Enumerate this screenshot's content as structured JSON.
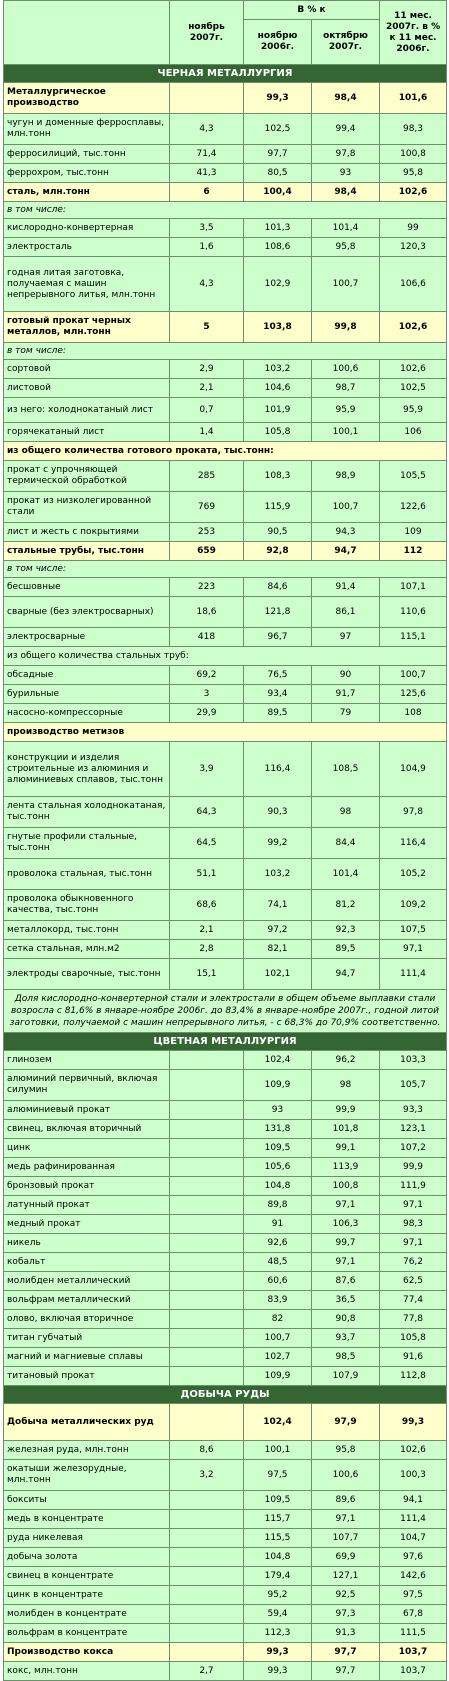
{
  "header": {
    "col_nov": "ноябрь 2007г.",
    "col_pct": "В % к",
    "col_vs_nov": "ноябрю 2006г.",
    "col_vs_oct": "октябрю 2007г.",
    "col_11m": "11 мес. 2007г. в % к 11 мес. 2006г."
  },
  "sections": [
    {
      "title": "ЧЕРНАЯ МЕТАЛЛУРГИЯ",
      "rows": [
        {
          "k": "bold",
          "h": 30,
          "label": "Металлургическое производство",
          "v": [
            "",
            "99,3",
            "98,4",
            "101,6"
          ]
        },
        {
          "k": "row",
          "h": 30,
          "label": "чугун и доменные ферросплавы, млн.тонн",
          "v": [
            "4,3",
            "102,5",
            "99,4",
            "98,3"
          ]
        },
        {
          "k": "row",
          "h": 18,
          "label": "ферросилиций, тыс.тонн",
          "v": [
            "71,4",
            "97,7",
            "97,8",
            "100,8"
          ]
        },
        {
          "k": "row",
          "h": 18,
          "label": "феррохром, тыс.тонн",
          "v": [
            "41,3",
            "80,5",
            "93",
            "95,8"
          ]
        },
        {
          "k": "bold",
          "h": 18,
          "label": "сталь, млн.тонн",
          "v": [
            "6",
            "100,4",
            "98,4",
            "102,6"
          ]
        },
        {
          "k": "sub",
          "h": 16,
          "label": "в том числе:",
          "v": null
        },
        {
          "k": "row",
          "h": 18,
          "label": "кислородно-конвертерная",
          "v": [
            "3,5",
            "101,3",
            "101,4",
            "99"
          ]
        },
        {
          "k": "row",
          "h": 18,
          "label": "электросталь",
          "v": [
            "1,6",
            "108,6",
            "95,8",
            "120,3"
          ]
        },
        {
          "k": "row",
          "h": 54,
          "label": "годная литая заготовка, получаемая с машин непрерывного литья, млн.тонн",
          "v": [
            "4,3",
            "102,9",
            "100,7",
            "106,6"
          ]
        },
        {
          "k": "bold",
          "h": 30,
          "label": "готовый прокат черных металлов, млн.тонн",
          "v": [
            "5",
            "103,8",
            "99,8",
            "102,6"
          ]
        },
        {
          "k": "sub",
          "h": 16,
          "label": "в том числе:",
          "v": null
        },
        {
          "k": "row",
          "h": 18,
          "label": "сортовой",
          "v": [
            "2,9",
            "103,2",
            "100,6",
            "102,6"
          ]
        },
        {
          "k": "row",
          "h": 18,
          "label": "листовой",
          "v": [
            "2,1",
            "104,6",
            "98,7",
            "102,5"
          ]
        },
        {
          "k": "row",
          "h": 24,
          "label": "из него: холоднокатаный лист",
          "v": [
            "0,7",
            "101,9",
            "95,9",
            "95,9"
          ]
        },
        {
          "k": "row",
          "h": 18,
          "label": "горячекатаный лист",
          "v": [
            "1,4",
            "105,8",
            "100,1",
            "106"
          ]
        },
        {
          "k": "bold",
          "h": 18,
          "label": "из общего количества готового проката, тыс.тонн:",
          "v": null
        },
        {
          "k": "row",
          "h": 30,
          "label": "прокат с упрочняющей термической обработкой",
          "v": [
            "285",
            "108,3",
            "98,9",
            "105,5"
          ]
        },
        {
          "k": "row",
          "h": 30,
          "label": "прокат из низколегированной стали",
          "v": [
            "769",
            "115,9",
            "100,7",
            "122,6"
          ]
        },
        {
          "k": "row",
          "h": 18,
          "label": "лист и жесть с покрытиями",
          "v": [
            "253",
            "90,5",
            "94,3",
            "109"
          ]
        },
        {
          "k": "bold",
          "h": 18,
          "label": "стальные трубы, тыс.тонн",
          "v": [
            "659",
            "92,8",
            "94,7",
            "112"
          ]
        },
        {
          "k": "sub",
          "h": 16,
          "label": "в том числе:",
          "v": null
        },
        {
          "k": "row",
          "h": 18,
          "label": "бесшовные",
          "v": [
            "223",
            "84,6",
            "91,4",
            "107,1"
          ]
        },
        {
          "k": "row",
          "h": 30,
          "label": "сварные (без электросварных)",
          "v": [
            "18,6",
            "121,8",
            "86,1",
            "110,6"
          ]
        },
        {
          "k": "row",
          "h": 18,
          "label": "электросварные",
          "v": [
            "418",
            "96,7",
            "97",
            "115,1"
          ]
        },
        {
          "k": "row",
          "h": 18,
          "label": "из общего количества стальных труб:",
          "v": null
        },
        {
          "k": "row",
          "h": 18,
          "label": "обсадные",
          "v": [
            "69,2",
            "76,5",
            "90",
            "100,7"
          ]
        },
        {
          "k": "row",
          "h": 18,
          "label": "бурильные",
          "v": [
            "3",
            "93,4",
            "91,7",
            "125,6"
          ]
        },
        {
          "k": "row",
          "h": 18,
          "label": "насосно-компрессорные",
          "v": [
            "29,9",
            "89,5",
            "79",
            "108"
          ]
        },
        {
          "k": "bold",
          "h": 18,
          "label": "производство метизов",
          "v": null
        },
        {
          "k": "row",
          "h": 54,
          "label": "конструкции и изделия строительные из алюминия и алюминиевых сплавов, тыс.тонн",
          "v": [
            "3,9",
            "116,4",
            "108,5",
            "104,9"
          ]
        },
        {
          "k": "row",
          "h": 30,
          "label": "лента стальная холоднокатаная, тыс.тонн",
          "v": [
            "64,3",
            "90,3",
            "98",
            "97,8"
          ]
        },
        {
          "k": "row",
          "h": 30,
          "label": "гнутые профили стальные, тыс.тонн",
          "v": [
            "64,5",
            "99,2",
            "84,4",
            "116,4"
          ]
        },
        {
          "k": "row",
          "h": 30,
          "label": "проволока стальная, тыс.тонн",
          "v": [
            "51,1",
            "103,2",
            "101,4",
            "105,2"
          ]
        },
        {
          "k": "row",
          "h": 30,
          "label": "проволока обыкновенного качества, тыс.тонн",
          "v": [
            "68,6",
            "74,1",
            "81,2",
            "109,2"
          ]
        },
        {
          "k": "row",
          "h": 18,
          "label": "металлокорд, тыс.тонн",
          "v": [
            "2,1",
            "97,2",
            "92,3",
            "107,5"
          ]
        },
        {
          "k": "row",
          "h": 18,
          "label": "сетка стальная, млн.м2",
          "v": [
            "2,8",
            "82,1",
            "89,5",
            "97,1"
          ]
        },
        {
          "k": "row",
          "h": 30,
          "label": "электроды сварочные, тыс.тонн",
          "v": [
            "15,1",
            "102,1",
            "94,7",
            "111,4"
          ]
        }
      ],
      "note": "Доля кислородно-конвертерной стали и электростали в общем объеме выплавки стали возросла с 81,6% в январе-ноябре 2006г. до 83,4% в январе-ноябре 2007г., годной литой заготовки, получаемой с машин непрерывного литья, - с 68,3% до 70,9% соответственно."
    },
    {
      "title": "ЦВЕТНАЯ МЕТАЛЛУРГИЯ",
      "rows": [
        {
          "k": "row",
          "h": 18,
          "label": "глинозем",
          "v": [
            "",
            "102,4",
            "96,2",
            "103,3"
          ]
        },
        {
          "k": "row",
          "h": 30,
          "label": "алюминий первичный, включая силумин",
          "v": [
            "",
            "109,9",
            "98",
            "105,7"
          ]
        },
        {
          "k": "row",
          "h": 18,
          "label": "алюминиевый прокат",
          "v": [
            "",
            "93",
            "99,9",
            "93,3"
          ]
        },
        {
          "k": "row",
          "h": 18,
          "label": "свинец, включая вторичный",
          "v": [
            "",
            "131,8",
            "101,8",
            "123,1"
          ]
        },
        {
          "k": "row",
          "h": 18,
          "label": "цинк",
          "v": [
            "",
            "109,5",
            "99,1",
            "107,2"
          ]
        },
        {
          "k": "row",
          "h": 18,
          "label": "медь рафинированная",
          "v": [
            "",
            "105,6",
            "113,9",
            "99,9"
          ]
        },
        {
          "k": "row",
          "h": 18,
          "label": "бронзовый прокат",
          "v": [
            "",
            "104,8",
            "100,8",
            "111,9"
          ]
        },
        {
          "k": "row",
          "h": 18,
          "label": "латунный прокат",
          "v": [
            "",
            "89,8",
            "97,1",
            "97,1"
          ]
        },
        {
          "k": "row",
          "h": 18,
          "label": "медный прокат",
          "v": [
            "",
            "91",
            "106,3",
            "98,3"
          ]
        },
        {
          "k": "row",
          "h": 18,
          "label": "никель",
          "v": [
            "",
            "92,6",
            "99,7",
            "97,1"
          ]
        },
        {
          "k": "row",
          "h": 18,
          "label": "кобальт",
          "v": [
            "",
            "48,5",
            "97,1",
            "76,2"
          ]
        },
        {
          "k": "row",
          "h": 18,
          "label": "молибден металлический",
          "v": [
            "",
            "60,6",
            "87,6",
            "62,5"
          ]
        },
        {
          "k": "row",
          "h": 18,
          "label": "вольфрам металлический",
          "v": [
            "",
            "83,9",
            "36,5",
            "77,4"
          ]
        },
        {
          "k": "row",
          "h": 18,
          "label": "олово, включая вторичное",
          "v": [
            "",
            "82",
            "90,8",
            "77,8"
          ]
        },
        {
          "k": "row",
          "h": 18,
          "label": "титан губчатый",
          "v": [
            "",
            "100,7",
            "93,7",
            "105,8"
          ]
        },
        {
          "k": "row",
          "h": 18,
          "label": "магний и магниевые сплавы",
          "v": [
            "",
            "102,7",
            "98,5",
            "91,6"
          ]
        },
        {
          "k": "row",
          "h": 18,
          "label": "титановый прокат",
          "v": [
            "",
            "109,9",
            "107,9",
            "112,8"
          ]
        }
      ]
    },
    {
      "title": "ДОБЫЧА РУДЫ",
      "rows": [
        {
          "k": "bold",
          "h": 36,
          "label": "Добыча металлических руд",
          "v": [
            "",
            "102,4",
            "97,9",
            "99,3"
          ]
        },
        {
          "k": "row",
          "h": 18,
          "label": "железная руда, млн.тонн",
          "v": [
            "8,6",
            "100,1",
            "95,8",
            "102,6"
          ]
        },
        {
          "k": "row",
          "h": 30,
          "label": "окатыши железорудные, млн.тонн",
          "v": [
            "3,2",
            "97,5",
            "100,6",
            "100,3"
          ]
        },
        {
          "k": "row",
          "h": 18,
          "label": "бокситы",
          "v": [
            "",
            "109,5",
            "89,6",
            "94,1"
          ]
        },
        {
          "k": "row",
          "h": 18,
          "label": "медь в концентрате",
          "v": [
            "",
            "115,7",
            "97,1",
            "111,4"
          ]
        },
        {
          "k": "row",
          "h": 18,
          "label": "руда никелевая",
          "v": [
            "",
            "115,5",
            "107,7",
            "104,7"
          ]
        },
        {
          "k": "row",
          "h": 18,
          "label": "добыча золота",
          "v": [
            "",
            "104,8",
            "69,9",
            "97,6"
          ]
        },
        {
          "k": "row",
          "h": 18,
          "label": "свинец в концентрате",
          "v": [
            "",
            "179,4",
            "127,1",
            "142,6"
          ]
        },
        {
          "k": "row",
          "h": 18,
          "label": "цинк в концентрате",
          "v": [
            "",
            "95,2",
            "92,5",
            "97,5"
          ]
        },
        {
          "k": "row",
          "h": 18,
          "label": "молибден в концентрате",
          "v": [
            "",
            "59,4",
            "97,3",
            "67,8"
          ]
        },
        {
          "k": "row",
          "h": 18,
          "label": "вольфрам в концентрате",
          "v": [
            "",
            "112,3",
            "91,3",
            "111,5"
          ]
        },
        {
          "k": "bold",
          "h": 18,
          "label": "Производство кокса",
          "v": [
            "",
            "99,3",
            "97,7",
            "103,7"
          ]
        },
        {
          "k": "row",
          "h": 18,
          "label": "кокс, млн.тонн",
          "v": [
            "2,7",
            "99,3",
            "97,7",
            "103,7"
          ]
        }
      ]
    }
  ]
}
